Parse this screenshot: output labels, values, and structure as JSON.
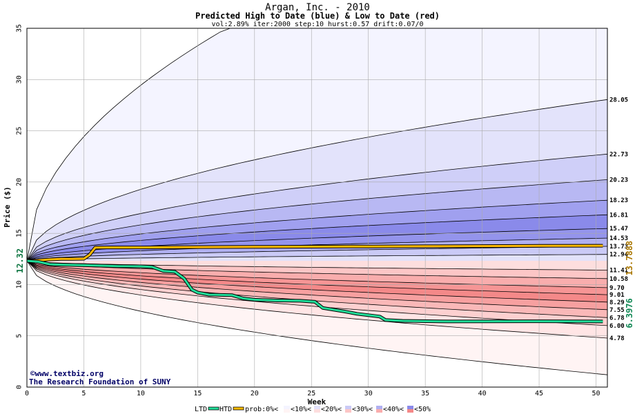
{
  "chart_data": {
    "type": "area",
    "title": "Argan, Inc. - 2010",
    "subtitle": "Predicted High to Date (blue) &  Low to Date (red)",
    "params": "vol:2.89% iter:2000 step:10 hurst:0.57 drift:0.07/0",
    "xlabel": "Week",
    "ylabel": "Price ($)",
    "xlim": [
      0,
      51
    ],
    "ylim": [
      0,
      35
    ],
    "xticks": [
      "0",
      "5",
      "10",
      "15",
      "20",
      "25",
      "30",
      "35",
      "40",
      "45",
      "50"
    ],
    "yticks": [
      "0",
      "5",
      "10",
      "15",
      "20",
      "25",
      "30",
      "35"
    ],
    "grid": true,
    "start_price": 12.32,
    "start_label": "12.32",
    "high_bands": [
      {
        "end": 51.0,
        "color": "#f4f4ff"
      },
      {
        "end": 28.05,
        "color": "#e3e3fb"
      },
      {
        "end": 22.73,
        "color": "#cfcff8"
      },
      {
        "end": 20.23,
        "color": "#b8b8f3"
      },
      {
        "end": 18.23,
        "color": "#a0a0ef"
      },
      {
        "end": 16.81,
        "color": "#8a8aea"
      },
      {
        "end": 15.47,
        "color": "#9494ec"
      },
      {
        "end": 14.53,
        "color": "#b0b0f1"
      },
      {
        "end": 13.73,
        "color": "#cacaf6"
      },
      {
        "end": 12.94,
        "color": "#e2e2fa"
      }
    ],
    "low_bands": [
      {
        "end": 1.2,
        "color": "#fff4f4"
      },
      {
        "end": 4.78,
        "color": "#ffe5e5"
      },
      {
        "end": 6.0,
        "color": "#fdd0d0"
      },
      {
        "end": 6.78,
        "color": "#fab8b8"
      },
      {
        "end": 7.55,
        "color": "#f7a0a0"
      },
      {
        "end": 8.29,
        "color": "#f48989"
      },
      {
        "end": 9.01,
        "color": "#f69595"
      },
      {
        "end": 9.7,
        "color": "#f9adad"
      },
      {
        "end": 10.58,
        "color": "#fcc6c6"
      },
      {
        "end": 11.41,
        "color": "#fddede"
      }
    ],
    "right_labels": [
      "28.05",
      "22.73",
      "20.23",
      "18.23",
      "16.81",
      "15.47",
      "14.53",
      "13.73",
      "12.94",
      "11.41",
      "10.58",
      "9.70",
      "9.01",
      "8.29",
      "7.55",
      "6.78",
      "6.00",
      "4.78"
    ],
    "htd_series": {
      "label": "13.7888",
      "color": "#ffbb00",
      "points": [
        [
          0,
          12.32
        ],
        [
          1,
          12.36
        ],
        [
          2,
          12.45
        ],
        [
          3,
          12.5
        ],
        [
          4,
          12.5
        ],
        [
          5,
          12.52
        ],
        [
          5.5,
          12.9
        ],
        [
          6,
          13.6
        ],
        [
          7,
          13.62
        ],
        [
          10,
          13.62
        ],
        [
          15,
          13.66
        ],
        [
          20,
          13.68
        ],
        [
          25,
          13.7
        ],
        [
          30,
          13.72
        ],
        [
          35,
          13.74
        ],
        [
          40,
          13.76
        ],
        [
          45,
          13.78
        ],
        [
          50.6,
          13.79
        ]
      ]
    },
    "ltd_series": {
      "label": "6.3976",
      "color": "#22dd99",
      "points": [
        [
          0,
          12.32
        ],
        [
          1,
          12.22
        ],
        [
          2,
          11.98
        ],
        [
          3,
          11.94
        ],
        [
          6,
          11.86
        ],
        [
          8,
          11.8
        ],
        [
          10,
          11.78
        ],
        [
          11,
          11.72
        ],
        [
          12,
          11.32
        ],
        [
          13,
          11.25
        ],
        [
          13.8,
          10.6
        ],
        [
          14.5,
          9.5
        ],
        [
          15,
          9.22
        ],
        [
          16,
          9.02
        ],
        [
          18,
          8.97
        ],
        [
          19,
          8.65
        ],
        [
          20,
          8.52
        ],
        [
          22,
          8.45
        ],
        [
          24,
          8.42
        ],
        [
          25.3,
          8.32
        ],
        [
          26,
          7.72
        ],
        [
          28,
          7.36
        ],
        [
          29,
          7.15
        ],
        [
          31,
          6.88
        ],
        [
          31.5,
          6.55
        ],
        [
          33,
          6.46
        ],
        [
          37,
          6.4
        ],
        [
          45,
          6.42
        ],
        [
          50.6,
          6.4
        ]
      ]
    },
    "credit_line1": "©www.textbiz.org",
    "credit_line2": "The Research Foundation of SUNY",
    "legend": [
      {
        "kind": "line",
        "color": "#22dd99",
        "label": "LTD"
      },
      {
        "kind": "line",
        "color": "#ffbb00",
        "label": "HTD"
      },
      {
        "kind": "swatch",
        "colors": [
          "#ffffff",
          "#ffffff"
        ],
        "label": "prob:0%<"
      },
      {
        "kind": "swatch",
        "colors": [
          "#f4f4ff",
          "#fff4f4"
        ],
        "label": "<10%<"
      },
      {
        "kind": "swatch",
        "colors": [
          "#e2e2fa",
          "#fddede"
        ],
        "label": "<20%<"
      },
      {
        "kind": "swatch",
        "colors": [
          "#cacaf6",
          "#fcc6c6"
        ],
        "label": "<30%<"
      },
      {
        "kind": "swatch",
        "colors": [
          "#b0b0f1",
          "#f9adad"
        ],
        "label": "<40%<"
      },
      {
        "kind": "swatch",
        "colors": [
          "#8a8aea",
          "#f48989"
        ],
        "label": "<50%"
      }
    ]
  }
}
